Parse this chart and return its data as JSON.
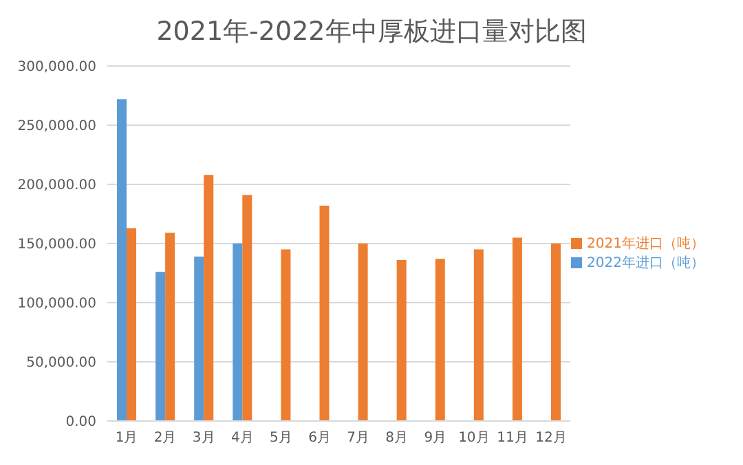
{
  "chart_data": {
    "type": "bar",
    "title": "2021年-2022年中厚板进口量对比图",
    "categories": [
      "1月",
      "2月",
      "3月",
      "4月",
      "5月",
      "6月",
      "7月",
      "8月",
      "9月",
      "10月",
      "11月",
      "12月"
    ],
    "series": [
      {
        "name": "2022年进口（吨）",
        "color": "#5b9bd5",
        "values": [
          272000,
          126000,
          139000,
          150000,
          null,
          null,
          null,
          null,
          null,
          null,
          null,
          null
        ]
      },
      {
        "name": "2021年进口（吨）",
        "color": "#ed7d31",
        "values": [
          163000,
          159000,
          208000,
          191000,
          145000,
          182000,
          150000,
          136000,
          137000,
          145000,
          155000,
          150000
        ]
      }
    ],
    "ylim": [
      0,
      300000
    ],
    "yticks": [
      {
        "value": 0,
        "label": "0.00"
      },
      {
        "value": 50000,
        "label": "50,000.00"
      },
      {
        "value": 100000,
        "label": "100,000.00"
      },
      {
        "value": 150000,
        "label": "150,000.00"
      },
      {
        "value": 200000,
        "label": "200,000.00"
      },
      {
        "value": 250000,
        "label": "250,000.00"
      },
      {
        "value": 300000,
        "label": "300,000.00"
      }
    ],
    "grid": "y",
    "legend": "right"
  }
}
